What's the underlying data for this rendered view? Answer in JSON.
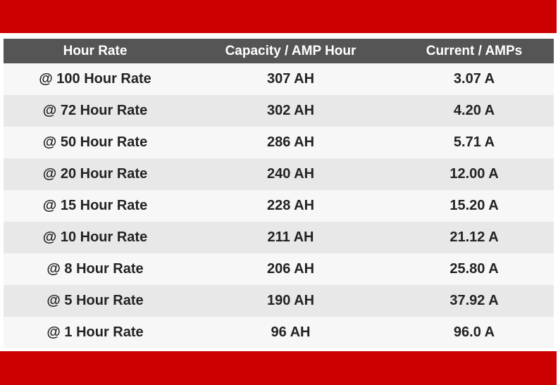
{
  "table": {
    "header": [
      "Hour Rate",
      "Capacity / AMP Hour",
      "Current / AMPs"
    ],
    "rows": [
      [
        "@ 100 Hour Rate",
        "307 AH",
        "3.07 A"
      ],
      [
        "@ 72 Hour Rate",
        "302 AH",
        "4.20 A"
      ],
      [
        "@ 50 Hour Rate",
        "286 AH",
        "5.71 A"
      ],
      [
        "@ 20 Hour Rate",
        "240 AH",
        "12.00 A"
      ],
      [
        "@ 15 Hour Rate",
        "228 AH",
        "15.20 A"
      ],
      [
        "@ 10 Hour Rate",
        "211 AH",
        "21.12 A"
      ],
      [
        "@ 8 Hour Rate",
        "206 AH",
        "25.80 A"
      ],
      [
        "@ 5 Hour Rate",
        "190 AH",
        "37.92 A"
      ],
      [
        "@ 1 Hour Rate",
        "96 AH",
        "96.0 A"
      ]
    ]
  }
}
